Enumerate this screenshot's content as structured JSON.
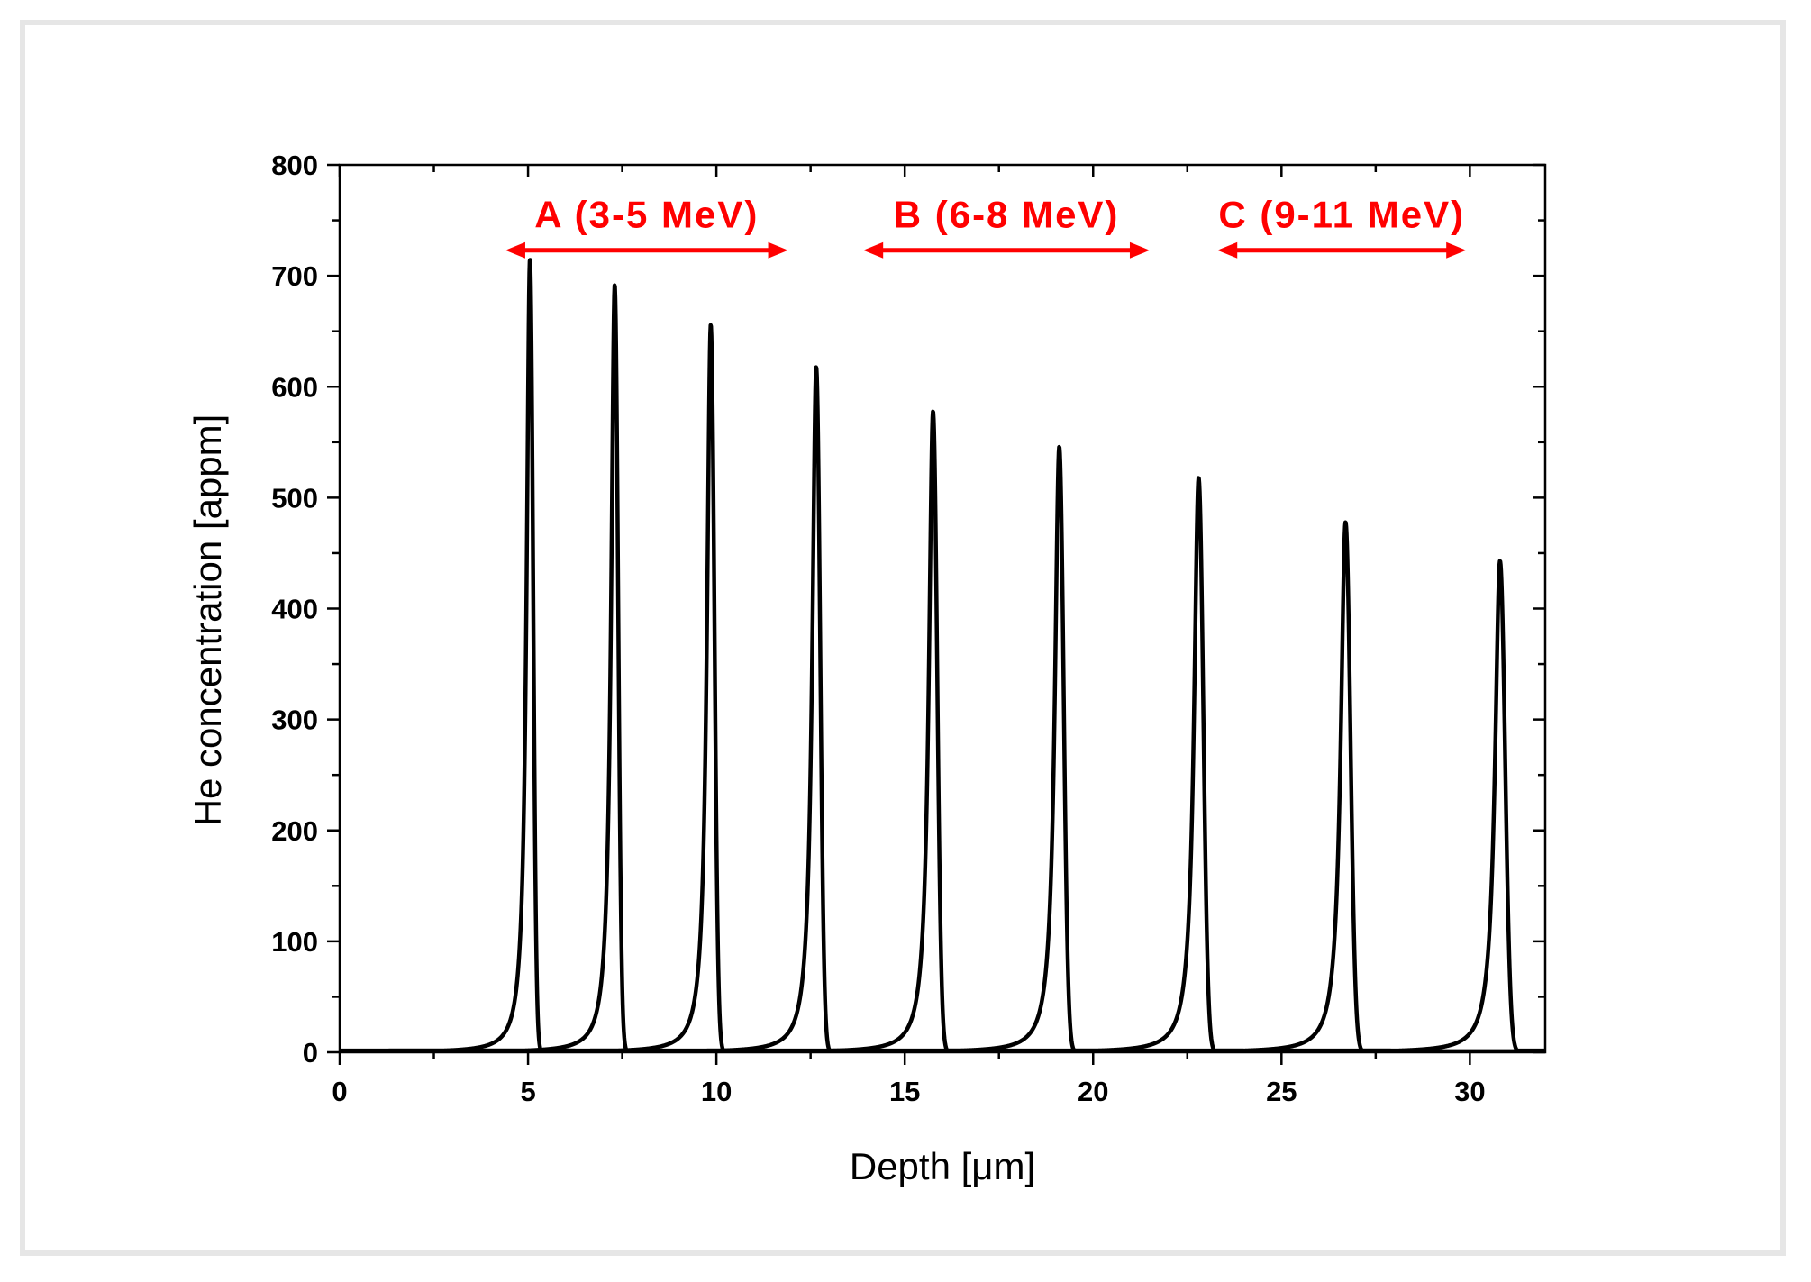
{
  "chart_data": {
    "type": "line",
    "title": "",
    "xlabel": "Depth [μm]",
    "ylabel": "He concentration [appm]",
    "xlim": [
      0,
      32
    ],
    "ylim": [
      0,
      800
    ],
    "xticks": [
      0,
      5,
      10,
      15,
      20,
      25,
      30
    ],
    "yticks": [
      0,
      100,
      200,
      300,
      400,
      500,
      600,
      700,
      800
    ],
    "grid": false,
    "line_color": "#000000",
    "series": [
      {
        "name": "peak-1",
        "center": 5.05,
        "peak": 715,
        "width_left": 0.32,
        "width_right": 0.13
      },
      {
        "name": "peak-2",
        "center": 7.3,
        "peak": 692,
        "width_left": 0.34,
        "width_right": 0.14
      },
      {
        "name": "peak-3",
        "center": 9.85,
        "peak": 656,
        "width_left": 0.36,
        "width_right": 0.15
      },
      {
        "name": "peak-4",
        "center": 12.65,
        "peak": 618,
        "width_left": 0.38,
        "width_right": 0.16
      },
      {
        "name": "peak-5",
        "center": 15.75,
        "peak": 578,
        "width_left": 0.4,
        "width_right": 0.17
      },
      {
        "name": "peak-6",
        "center": 19.1,
        "peak": 546,
        "width_left": 0.42,
        "width_right": 0.18
      },
      {
        "name": "peak-7",
        "center": 22.8,
        "peak": 518,
        "width_left": 0.44,
        "width_right": 0.19
      },
      {
        "name": "peak-8",
        "center": 26.7,
        "peak": 478,
        "width_left": 0.46,
        "width_right": 0.2
      },
      {
        "name": "peak-9",
        "center": 30.8,
        "peak": 443,
        "width_left": 0.48,
        "width_right": 0.21
      }
    ],
    "annotations": [
      {
        "label": "A (3-5 MeV)",
        "x_start": 4.4,
        "x_end": 11.9,
        "y": 723,
        "label_y": 755,
        "color": "#ff0000"
      },
      {
        "label": "B (6-8 MeV)",
        "x_start": 13.9,
        "x_end": 21.5,
        "y": 723,
        "label_y": 755,
        "color": "#ff0000"
      },
      {
        "label": "C (9-11 MeV)",
        "x_start": 23.3,
        "x_end": 29.9,
        "y": 723,
        "label_y": 755,
        "color": "#ff0000"
      }
    ]
  }
}
